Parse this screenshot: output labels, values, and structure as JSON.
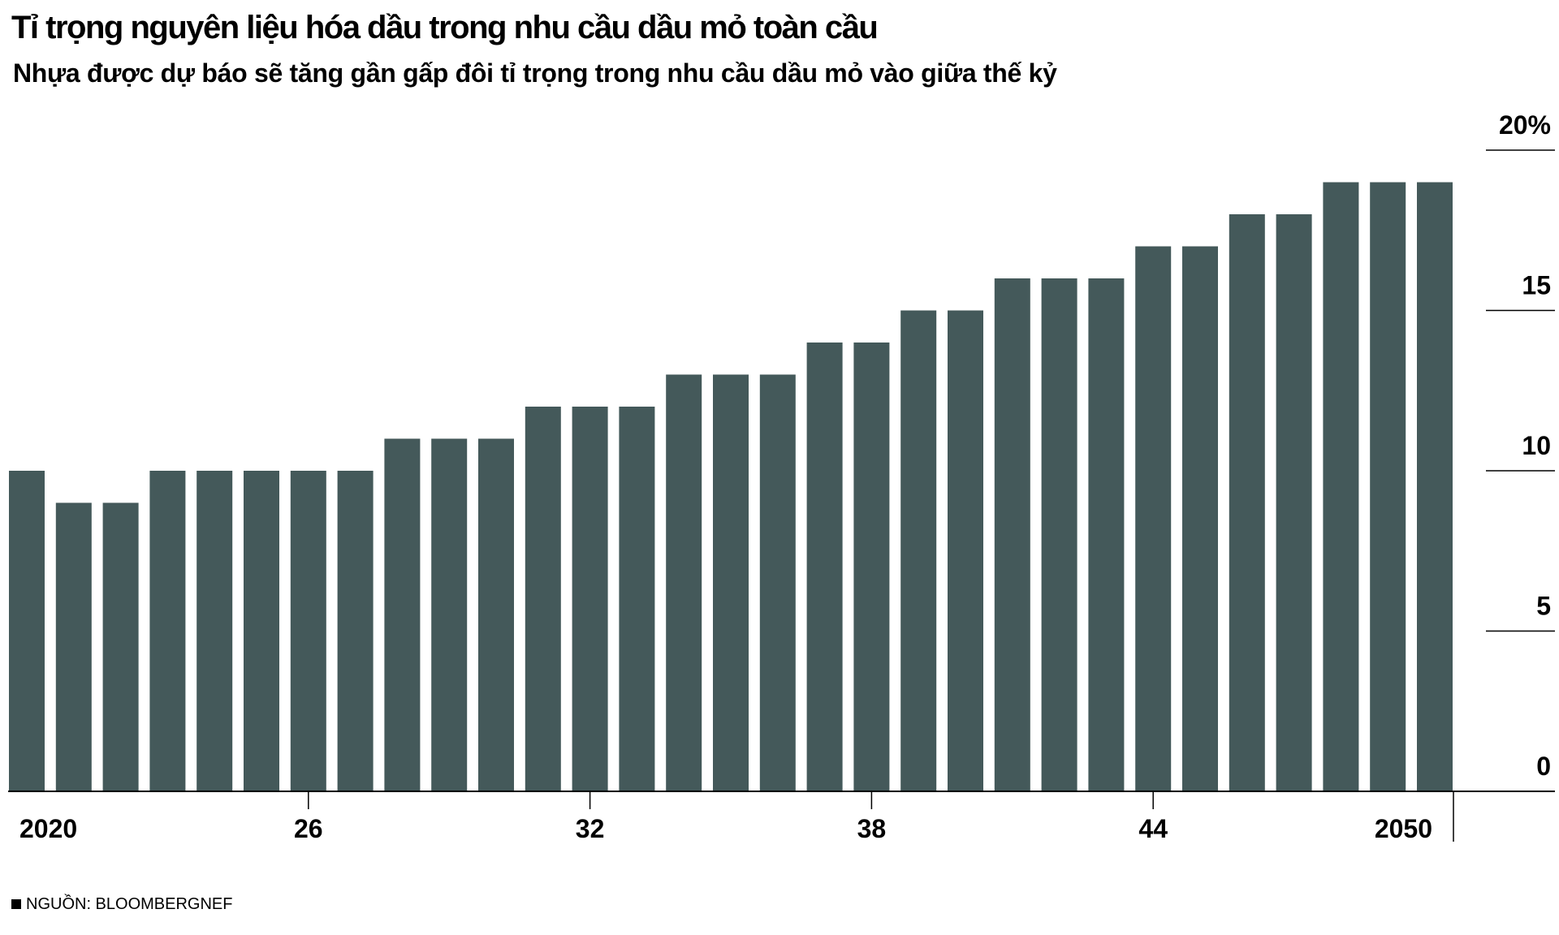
{
  "header": {
    "title": "Tỉ trọng nguyên liệu hóa dầu trong nhu cầu dầu mỏ toàn cầu",
    "subtitle": "Nhựa được dự báo sẽ tăng gần gấp đôi tỉ trọng trong nhu cầu dầu mỏ vào giữa thế kỷ"
  },
  "footer": {
    "source": "NGUỒN: BLOOMBERGNEF"
  },
  "colors": {
    "bar": "#44595a",
    "axis": "#000000",
    "text": "#000000"
  },
  "chart_data": {
    "type": "bar",
    "title": "Tỉ trọng nguyên liệu hóa dầu trong nhu cầu dầu mỏ toàn cầu",
    "subtitle": "Nhựa được dự báo sẽ tăng gần gấp đôi tỉ trọng trong nhu cầu dầu mỏ vào giữa thế kỷ",
    "xlabel": "",
    "ylabel": "",
    "ylim": [
      0,
      20
    ],
    "y_axis_position": "right",
    "grid": false,
    "categories": [
      2020,
      2021,
      2022,
      2023,
      2024,
      2025,
      2026,
      2027,
      2028,
      2029,
      2030,
      2031,
      2032,
      2033,
      2034,
      2035,
      2036,
      2037,
      2038,
      2039,
      2040,
      2041,
      2042,
      2043,
      2044,
      2045,
      2046,
      2047,
      2048,
      2049,
      2050
    ],
    "values": [
      10,
      9,
      9,
      10,
      10,
      10,
      10,
      10,
      11,
      11,
      11,
      12,
      12,
      12,
      13,
      13,
      13,
      14,
      14,
      15,
      15,
      16,
      16,
      16,
      17,
      17,
      18,
      18,
      19,
      19,
      19
    ],
    "x_tick_labels": [
      {
        "category": 2020,
        "label": "2020"
      },
      {
        "category": 2026,
        "label": "26"
      },
      {
        "category": 2032,
        "label": "32"
      },
      {
        "category": 2038,
        "label": "38"
      },
      {
        "category": 2044,
        "label": "44"
      },
      {
        "category": 2050,
        "label": "2050"
      }
    ],
    "y_ticks": [
      {
        "value": 20,
        "label": "20%"
      },
      {
        "value": 15,
        "label": "15"
      },
      {
        "value": 10,
        "label": "10"
      },
      {
        "value": 5,
        "label": "5"
      },
      {
        "value": 0,
        "label": "0"
      }
    ]
  }
}
